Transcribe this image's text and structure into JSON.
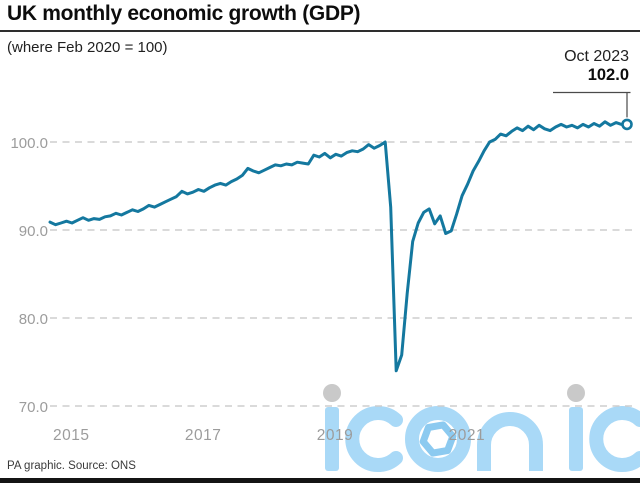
{
  "header": {
    "title": "UK monthly economic growth (GDP)",
    "subtitle": "(where Feb 2020 = 100)"
  },
  "annotation": {
    "date_label": "Oct 2023",
    "value_label": "102.0"
  },
  "footer": {
    "credit": "PA graphic. Source: ONS"
  },
  "watermark": {
    "text": "iconic"
  },
  "colors": {
    "line": "#14789f",
    "grid": "#cdcdcd",
    "axis_text": "#9c9c9c",
    "annotation_line": "#4a4a4a",
    "watermark_blue": "#a9d9f7",
    "watermark_hexagon": "#8ccaf0",
    "watermark_dot": "#c9c9c9",
    "bottom_bar": "#141414"
  },
  "chart_data": {
    "type": "line",
    "title": "UK monthly economic growth (GDP)",
    "subtitle": "(where Feb 2020 = 100)",
    "x_start": "Jan 2015",
    "x_end": "Oct 2023",
    "x_tick_labels": [
      "2015",
      "2017",
      "2019",
      "2021"
    ],
    "y_ticks": [
      100.0,
      90.0,
      80.0,
      70.0
    ],
    "ylim": [
      68,
      104
    ],
    "grid": "dashed-horizontal",
    "legend": "none",
    "last_point": {
      "label": "Oct 2023",
      "value": 102.0
    },
    "series": [
      {
        "name": "UK monthly GDP index (Feb 2020 = 100)",
        "frequency": "monthly",
        "values": [
          90.9,
          90.6,
          90.8,
          91.0,
          90.8,
          91.1,
          91.4,
          91.1,
          91.3,
          91.2,
          91.5,
          91.6,
          91.9,
          91.7,
          92.0,
          92.3,
          92.1,
          92.4,
          92.8,
          92.6,
          92.9,
          93.2,
          93.5,
          93.8,
          94.4,
          94.1,
          94.3,
          94.6,
          94.4,
          94.8,
          95.1,
          95.3,
          95.1,
          95.5,
          95.8,
          96.2,
          97.0,
          96.7,
          96.5,
          96.8,
          97.1,
          97.4,
          97.3,
          97.5,
          97.4,
          97.7,
          97.6,
          97.5,
          98.5,
          98.3,
          98.7,
          98.2,
          98.6,
          98.4,
          98.8,
          99.0,
          98.9,
          99.2,
          99.7,
          99.3,
          99.6,
          100.0,
          92.6,
          74.0,
          75.8,
          82.8,
          88.7,
          90.8,
          92.0,
          92.4,
          90.7,
          91.6,
          89.6,
          89.9,
          91.8,
          93.9,
          95.2,
          96.7,
          97.8,
          99.0,
          100.0,
          100.3,
          100.9,
          100.7,
          101.2,
          101.6,
          101.3,
          101.8,
          101.4,
          101.9,
          101.5,
          101.3,
          101.7,
          102.0,
          101.7,
          101.9,
          101.6,
          102.0,
          101.7,
          102.1,
          101.8,
          102.3,
          101.9,
          102.2,
          102.0,
          102.0
        ]
      }
    ]
  }
}
